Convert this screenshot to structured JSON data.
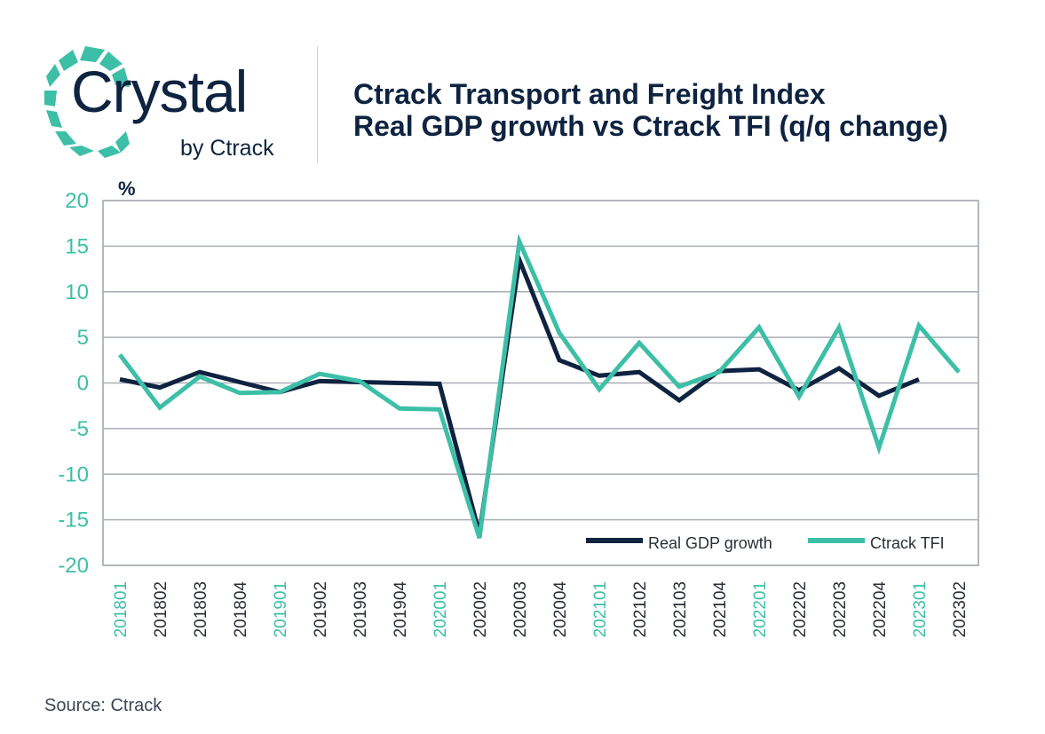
{
  "brand": {
    "name": "Crystal",
    "sub": "by Ctrack",
    "colors": {
      "navy": "#0e2340",
      "teal": "#3dbfa7"
    }
  },
  "source": "Source: Ctrack",
  "chart_data": {
    "type": "line",
    "title": [
      "Ctrack Transport and Freight Index",
      "Real GDP growth vs Ctrack TFI (q/q change)"
    ],
    "ylabel": "%",
    "xlabel": "",
    "ylim": [
      -20,
      20
    ],
    "yticks": [
      20,
      15,
      10,
      5,
      0,
      -5,
      -10,
      -15,
      -20
    ],
    "ytick_labels": [
      "20",
      "15",
      "10",
      "5",
      "0",
      "-5",
      "-10",
      "-15",
      "-20"
    ],
    "grid": true,
    "legend_position": "bottom-right",
    "categories": [
      "201801",
      "201802",
      "201803",
      "201804",
      "201901",
      "201902",
      "201903",
      "201904",
      "202001",
      "202002",
      "202003",
      "202004",
      "202101",
      "202102",
      "202103",
      "202104",
      "202201",
      "202202",
      "202203",
      "202204",
      "202301",
      "202302"
    ],
    "highlighted_categories": [
      "201801",
      "201901",
      "202001",
      "202101",
      "202201",
      "202301"
    ],
    "series": [
      {
        "name": "Real GDP growth",
        "color": "#0e2340",
        "values": [
          0.4,
          -0.5,
          1.2,
          0.1,
          -1.0,
          0.2,
          0.1,
          0.0,
          -0.1,
          -16.5,
          13.5,
          2.5,
          0.8,
          1.2,
          -1.9,
          1.3,
          1.5,
          -0.8,
          1.6,
          -1.4,
          0.4,
          null
        ]
      },
      {
        "name": "Ctrack TFI",
        "color": "#3dbfa7",
        "values": [
          3.1,
          -2.7,
          0.7,
          -1.1,
          -1.0,
          1.0,
          0.2,
          -2.8,
          -2.9,
          -17.0,
          15.5,
          5.5,
          -0.7,
          4.4,
          -0.4,
          1.2,
          6.1,
          -1.5,
          6.1,
          -7.1,
          6.3,
          1.2
        ]
      }
    ]
  }
}
